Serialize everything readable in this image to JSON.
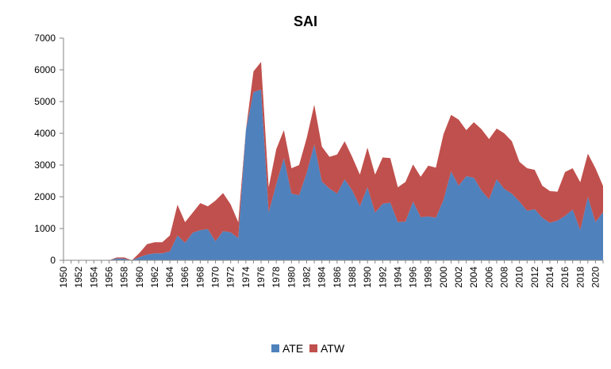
{
  "chart_data": {
    "type": "area",
    "stacked": true,
    "title": "SAI",
    "xlabel": "",
    "ylabel": "",
    "ylim": [
      0,
      7000
    ],
    "yticks": [
      0,
      1000,
      2000,
      3000,
      4000,
      5000,
      6000,
      7000
    ],
    "x": [
      1950,
      1951,
      1952,
      1953,
      1954,
      1955,
      1956,
      1957,
      1958,
      1959,
      1960,
      1961,
      1962,
      1963,
      1964,
      1965,
      1966,
      1967,
      1968,
      1969,
      1970,
      1971,
      1972,
      1973,
      1974,
      1975,
      1976,
      1977,
      1978,
      1979,
      1980,
      1981,
      1982,
      1983,
      1984,
      1985,
      1986,
      1987,
      1988,
      1989,
      1990,
      1991,
      1992,
      1993,
      1994,
      1995,
      1996,
      1997,
      1998,
      1999,
      2000,
      2001,
      2002,
      2003,
      2004,
      2005,
      2006,
      2007,
      2008,
      2009,
      2010,
      2011,
      2012,
      2013,
      2014,
      2015,
      2016,
      2017,
      2018,
      2019,
      2020,
      2021
    ],
    "xtick_labels": [
      "1950",
      "1952",
      "1954",
      "1956",
      "1958",
      "1960",
      "1962",
      "1964",
      "1966",
      "1968",
      "1970",
      "1972",
      "1974",
      "1976",
      "1978",
      "1980",
      "1982",
      "1984",
      "1986",
      "1988",
      "1990",
      "1992",
      "1994",
      "1996",
      "1998",
      "2000",
      "2002",
      "2004",
      "2006",
      "2008",
      "2010",
      "2012",
      "2014",
      "2016",
      "2018",
      "2020"
    ],
    "series": [
      {
        "name": "ATE",
        "color": "#4F81BD",
        "values": [
          0,
          0,
          0,
          0,
          0,
          0,
          0,
          60,
          50,
          0,
          100,
          180,
          220,
          220,
          280,
          780,
          550,
          870,
          950,
          980,
          600,
          920,
          880,
          700,
          4100,
          5300,
          5380,
          1500,
          2400,
          3220,
          2100,
          2050,
          2750,
          3650,
          2480,
          2260,
          2100,
          2550,
          2200,
          1700,
          2300,
          1500,
          1780,
          1820,
          1200,
          1220,
          1850,
          1360,
          1380,
          1340,
          1900,
          2800,
          2350,
          2650,
          2600,
          2200,
          1920,
          2550,
          2250,
          2100,
          1850,
          1560,
          1610,
          1340,
          1180,
          1250,
          1400,
          1600,
          950,
          2000,
          1200,
          1520
        ]
      },
      {
        "name": "ATW",
        "color": "#C0504D",
        "values": [
          0,
          0,
          0,
          0,
          0,
          0,
          0,
          30,
          40,
          0,
          130,
          330,
          350,
          350,
          500,
          970,
          650,
          630,
          850,
          720,
          1280,
          1200,
          880,
          500,
          0,
          650,
          870,
          800,
          1100,
          880,
          800,
          950,
          1100,
          1250,
          1100,
          1000,
          1230,
          1200,
          1050,
          1000,
          1250,
          1200,
          1460,
          1400,
          1100,
          1250,
          1170,
          1270,
          1600,
          1580,
          2070,
          1780,
          2080,
          1450,
          1750,
          1930,
          1900,
          1600,
          1750,
          1650,
          1250,
          1340,
          1240,
          1010,
          1000,
          910,
          1380,
          1300,
          1510,
          1360,
          1700,
          820
        ]
      }
    ],
    "legend": {
      "position": "bottom",
      "entries": [
        "ATE",
        "ATW"
      ]
    },
    "grid": false
  }
}
